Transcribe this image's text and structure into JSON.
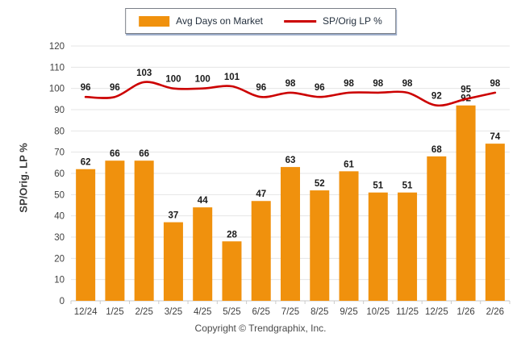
{
  "legend": {
    "bar_label": "Avg Days on Market",
    "line_label": "SP/Orig LP %"
  },
  "y_axis_title": "SP/Orig. LP %",
  "footer": "Copyright © Trendgraphix, Inc.",
  "colors": {
    "bar": "#F0910D",
    "line": "#CC0000",
    "grid": "#E4E4E4",
    "axis_line": "#C8C8C8",
    "tick_text": "#404040",
    "data_label": "#1A1A1A"
  },
  "chart_data": {
    "type": "bar",
    "subtype": "bar+line combo",
    "categories": [
      "12/24",
      "1/25",
      "2/25",
      "3/25",
      "4/25",
      "5/25",
      "6/25",
      "7/25",
      "8/25",
      "9/25",
      "10/25",
      "11/25",
      "12/25",
      "1/26",
      "2/26"
    ],
    "series": [
      {
        "name": "Avg Days on Market",
        "type": "bar",
        "color": "#F0910D",
        "values": [
          62,
          66,
          66,
          37,
          44,
          28,
          47,
          63,
          52,
          61,
          51,
          51,
          68,
          92,
          74
        ]
      },
      {
        "name": "SP/Orig LP %",
        "type": "line",
        "color": "#CC0000",
        "values": [
          96,
          96,
          103,
          100,
          100,
          101,
          96,
          98,
          96,
          98,
          98,
          98,
          92,
          95,
          98
        ]
      }
    ],
    "title": "",
    "xlabel": "",
    "ylabel": "SP/Orig. LP %",
    "ylim": [
      0,
      120
    ],
    "ytick_step": 10,
    "grid": true,
    "data_labels": true,
    "legend_position": "top-center",
    "line_smoothing": true
  }
}
